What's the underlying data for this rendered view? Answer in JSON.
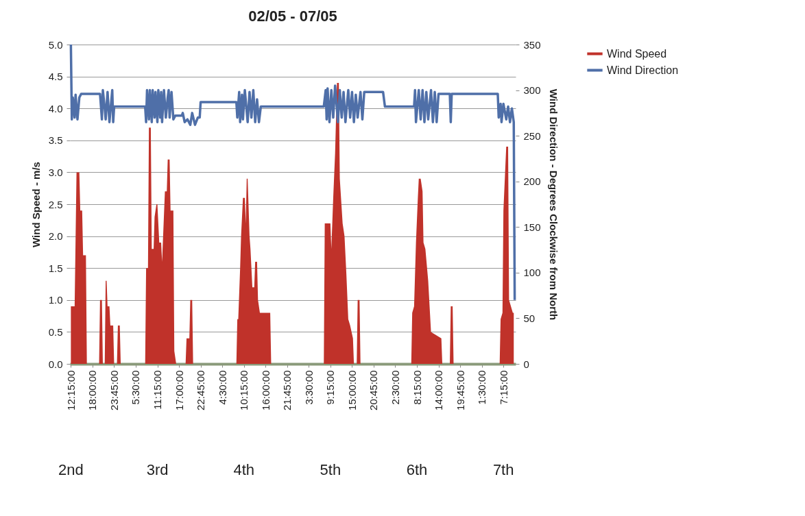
{
  "chart_data": {
    "type": "area",
    "title": "02/05 - 07/05",
    "ylabel": "Wind Speed - m/s",
    "y2label": "Wind Direction - Degrees  Clockwise from North",
    "xlim": [
      "--05-02T12:00",
      "--05-07T10:30"
    ],
    "xticks": [
      {
        "value": "--05-02T12:15",
        "label": "12:15:00"
      },
      {
        "value": "--05-02T18:00",
        "label": "18:00:00"
      },
      {
        "value": "--05-02T23:45",
        "label": "23:45:00"
      },
      {
        "value": "--05-03T05:30",
        "label": "5:30:00"
      },
      {
        "value": "--05-03T11:15",
        "label": "11:15:00"
      },
      {
        "value": "--05-03T17:00",
        "label": "17:00:00"
      },
      {
        "value": "--05-03T22:45",
        "label": "22:45:00"
      },
      {
        "value": "--05-04T04:30",
        "label": "4:30:00"
      },
      {
        "value": "--05-04T10:15",
        "label": "10:15:00"
      },
      {
        "value": "--05-04T16:00",
        "label": "16:00:00"
      },
      {
        "value": "--05-04T21:45",
        "label": "21:45:00"
      },
      {
        "value": "--05-05T03:30",
        "label": "3:30:00"
      },
      {
        "value": "--05-05T09:15",
        "label": "9:15:00"
      },
      {
        "value": "--05-05T15:00",
        "label": "15:00:00"
      },
      {
        "value": "--05-05T20:45",
        "label": "20:45:00"
      },
      {
        "value": "--05-06T02:30",
        "label": "2:30:00"
      },
      {
        "value": "--05-06T08:15",
        "label": "8:15:00"
      },
      {
        "value": "--05-06T14:00",
        "label": "14:00:00"
      },
      {
        "value": "--05-06T19:45",
        "label": "19:45:00"
      },
      {
        "value": "--05-07T01:30",
        "label": "1:30:00"
      },
      {
        "value": "--05-07T07:15",
        "label": "7:15:00"
      }
    ],
    "ylim": [
      0,
      5
    ],
    "yticks": [
      {
        "value": 0,
        "label": "0.0"
      },
      {
        "value": 0.5,
        "label": "0.5"
      },
      {
        "value": 1,
        "label": "1.0"
      },
      {
        "value": 1.5,
        "label": "1.5"
      },
      {
        "value": 2,
        "label": "2.0"
      },
      {
        "value": 2.5,
        "label": "2.5"
      },
      {
        "value": 3,
        "label": "3.0"
      },
      {
        "value": 3.5,
        "label": "3.5"
      },
      {
        "value": 4,
        "label": "4.0"
      },
      {
        "value": 4.5,
        "label": "4.5"
      },
      {
        "value": 5,
        "label": "5.0"
      }
    ],
    "y2lim": [
      0,
      350
    ],
    "y2ticks": [
      0,
      50,
      100,
      150,
      200,
      250,
      300,
      350
    ],
    "grid": "y",
    "legend": "right",
    "annotations": [
      "2nd",
      "3rd",
      "4th",
      "5th",
      "6th",
      "7th"
    ],
    "series": [
      {
        "name": "Wind Speed",
        "color": "#c0322a",
        "x": [
          "--05-02T12:15",
          "--05-02T13:15",
          "--05-02T13:45",
          "--05-02T14:30",
          "--05-02T14:45",
          "--05-02T15:15",
          "--05-02T15:30",
          "--05-02T16:15",
          "--05-02T16:30",
          "--05-02T19:45",
          "--05-02T20:00",
          "--05-02T20:30",
          "--05-02T20:45",
          "--05-02T21:15",
          "--05-02T21:30",
          "--05-02T21:45",
          "--05-02T22:00",
          "--05-02T22:30",
          "--05-02T22:45",
          "--05-02T23:30",
          "--05-02T23:45",
          "--05-03T00:30",
          "--05-03T00:45",
          "--05-03T01:15",
          "--05-03T01:30",
          "--05-03T08:00",
          "--05-03T08:15",
          "--05-03T08:45",
          "--05-03T09:00",
          "--05-03T09:30",
          "--05-03T09:45",
          "--05-03T10:15",
          "--05-03T10:30",
          "--05-03T11:00",
          "--05-03T11:15",
          "--05-03T11:45",
          "--05-03T12:15",
          "--05-03T12:30",
          "--05-03T13:15",
          "--05-03T13:45",
          "--05-03T14:00",
          "--05-03T14:30",
          "--05-03T14:45",
          "--05-03T15:30",
          "--05-03T15:45",
          "--05-03T16:15",
          "--05-03T18:45",
          "--05-03T19:00",
          "--05-03T19:45",
          "--05-03T20:00",
          "--05-03T20:30",
          "--05-03T20:45",
          "--05-04T08:15",
          "--05-04T08:30",
          "--05-04T08:45",
          "--05-04T09:15",
          "--05-04T09:30",
          "--05-04T10:00",
          "--05-04T10:30",
          "--05-04T10:45",
          "--05-04T11:00",
          "--05-04T11:15",
          "--05-04T11:45",
          "--05-04T12:00",
          "--05-04T12:30",
          "--05-04T13:00",
          "--05-04T13:15",
          "--05-04T13:45",
          "--05-04T14:00",
          "--05-04T14:30",
          "--05-04T17:15",
          "--05-04T17:30",
          "--05-05T07:30",
          "--05-05T07:45",
          "--05-05T09:15",
          "--05-05T09:30",
          "--05-05T10:00",
          "--05-05T10:30",
          "--05-05T11:00",
          "--05-05T11:30",
          "--05-05T11:45",
          "--05-05T12:30",
          "--05-05T13:00",
          "--05-05T13:30",
          "--05-05T14:00",
          "--05-05T14:30",
          "--05-05T15:15",
          "--05-05T15:30",
          "--05-05T16:15",
          "--05-05T16:30",
          "--05-05T17:00",
          "--05-05T17:15",
          "--05-06T06:45",
          "--05-06T07:00",
          "--05-06T07:30",
          "--05-06T08:00",
          "--05-06T08:30",
          "--05-06T08:45",
          "--05-06T09:15",
          "--05-06T09:45",
          "--05-06T10:00",
          "--05-06T10:30",
          "--05-06T11:15",
          "--05-06T12:00",
          "--05-06T14:45",
          "--05-06T15:00",
          "--05-06T17:00",
          "--05-06T17:15",
          "--05-06T17:45",
          "--05-06T18:00",
          "--05-07T06:15",
          "--05-07T06:30",
          "--05-07T07:00",
          "--05-07T07:15",
          "--05-07T08:00",
          "--05-07T08:30",
          "--05-07T08:45",
          "--05-07T09:45",
          "--05-07T10:00"
        ],
        "values": [
          0.9,
          0.9,
          3.0,
          3.0,
          2.4,
          2.4,
          1.7,
          1.7,
          0,
          0,
          1.0,
          1.0,
          0,
          0,
          1.3,
          1.3,
          0.9,
          0.9,
          0.6,
          0.6,
          0,
          0,
          0.6,
          0.6,
          0,
          0,
          1.5,
          1.5,
          3.7,
          3.7,
          1.8,
          1.8,
          2.3,
          2.5,
          2.5,
          1.9,
          1.9,
          1.6,
          2.7,
          2.7,
          3.2,
          3.2,
          2.4,
          2.4,
          0.2,
          0,
          0,
          0.4,
          0.4,
          1.0,
          1.0,
          0,
          0,
          0.7,
          0.7,
          1.5,
          2.0,
          2.6,
          2.6,
          2.2,
          2.9,
          2.9,
          2.0,
          1.8,
          1.2,
          1.2,
          1.6,
          1.6,
          1.0,
          0.8,
          0.8,
          0,
          0,
          2.2,
          2.2,
          1.8,
          2.6,
          3.3,
          4.4,
          4.4,
          2.9,
          2.2,
          2.0,
          1.4,
          0.7,
          0.6,
          0.4,
          0,
          0,
          1.0,
          1.0,
          0,
          0,
          0.8,
          0.9,
          1.9,
          2.6,
          2.9,
          2.9,
          2.7,
          1.9,
          1.8,
          1.3,
          0.5,
          0.4,
          0,
          0,
          0.9,
          0.9,
          0,
          0,
          0.7,
          0.8,
          2.4,
          3.4,
          3.4,
          1.0,
          0.8,
          0.8
        ]
      },
      {
        "name": "Wind Direction",
        "type": "line",
        "axis": "y2",
        "color": "#4f6fa8",
        "x": [
          "--05-02T12:15",
          "--05-02T12:30",
          "--05-02T12:45",
          "--05-02T13:15",
          "--05-02T13:30",
          "--05-02T14:00",
          "--05-02T14:30",
          "--05-02T15:00",
          "--05-02T20:00",
          "--05-02T20:30",
          "--05-02T20:45",
          "--05-02T21:15",
          "--05-02T21:30",
          "--05-02T22:00",
          "--05-02T22:30",
          "--05-02T23:15",
          "--05-02T23:30",
          "--05-02T23:45",
          "--05-03T08:00",
          "--05-03T08:15",
          "--05-03T08:30",
          "--05-03T09:00",
          "--05-03T09:15",
          "--05-03T09:45",
          "--05-03T10:00",
          "--05-03T10:30",
          "--05-03T10:45",
          "--05-03T11:15",
          "--05-03T11:30",
          "--05-03T12:00",
          "--05-03T12:15",
          "--05-03T12:30",
          "--05-03T13:00",
          "--05-03T13:30",
          "--05-03T14:00",
          "--05-03T14:15",
          "--05-03T14:30",
          "--05-03T15:00",
          "--05-03T15:30",
          "--05-03T16:00",
          "--05-03T17:45",
          "--05-03T18:00",
          "--05-03T18:30",
          "--05-03T19:15",
          "--05-03T20:00",
          "--05-03T20:30",
          "--05-03T21:15",
          "--05-03T22:00",
          "--05-03T22:30",
          "--05-03T22:45",
          "--05-04T08:15",
          "--05-04T08:30",
          "--05-04T09:00",
          "--05-04T09:15",
          "--05-04T09:45",
          "--05-04T10:00",
          "--05-04T10:30",
          "--05-04T11:15",
          "--05-04T11:45",
          "--05-04T12:15",
          "--05-04T12:45",
          "--05-04T13:15",
          "--05-04T13:45",
          "--05-04T14:15",
          "--05-04T14:45",
          "--05-05T07:30",
          "--05-05T08:00",
          "--05-05T08:15",
          "--05-05T08:30",
          "--05-05T09:00",
          "--05-05T09:30",
          "--05-05T10:00",
          "--05-05T10:30",
          "--05-05T11:15",
          "--05-05T11:45",
          "--05-05T12:15",
          "--05-05T12:45",
          "--05-05T13:15",
          "--05-05T14:00",
          "--05-05T14:30",
          "--05-05T15:00",
          "--05-05T15:30",
          "--05-05T16:00",
          "--05-05T16:30",
          "--05-05T17:15",
          "--05-05T17:45",
          "--05-05T18:15",
          "--05-05T23:15",
          "--05-05T23:45",
          "--05-06T07:30",
          "--05-06T07:45",
          "--05-06T08:00",
          "--05-06T08:45",
          "--05-06T09:15",
          "--05-06T09:45",
          "--05-06T10:15",
          "--05-06T10:45",
          "--05-06T11:15",
          "--05-06T12:00",
          "--05-06T12:30",
          "--05-06T13:00",
          "--05-06T13:30",
          "--05-06T14:00",
          "--05-06T17:00",
          "--05-06T17:15",
          "--05-06T17:30",
          "--05-07T05:45",
          "--05-07T06:00",
          "--05-07T06:30",
          "--05-07T06:45",
          "--05-07T07:15",
          "--05-07T08:00",
          "--05-07T08:30",
          "--05-07T09:00",
          "--05-07T09:30",
          "--05-07T10:00",
          "--05-07T10:15"
        ],
        "values": [
          350,
          268,
          292,
          270,
          295,
          268,
          292,
          296,
          296,
          268,
          300,
          280,
          268,
          298,
          265,
          300,
          265,
          282,
          282,
          265,
          300,
          268,
          300,
          265,
          300,
          270,
          298,
          265,
          300,
          270,
          298,
          265,
          300,
          270,
          292,
          300,
          270,
          298,
          268,
          272,
          272,
          275,
          265,
          268,
          262,
          275,
          262,
          270,
          270,
          287,
          287,
          270,
          298,
          265,
          295,
          268,
          300,
          265,
          298,
          270,
          300,
          265,
          290,
          265,
          282,
          282,
          300,
          268,
          302,
          265,
          300,
          270,
          305,
          265,
          300,
          270,
          298,
          265,
          300,
          270,
          298,
          265,
          295,
          270,
          298,
          268,
          298,
          298,
          282,
          282,
          300,
          265,
          300,
          268,
          300,
          265,
          298,
          268,
          300,
          265,
          298,
          265,
          296,
          296,
          265,
          296,
          296,
          270,
          285,
          265,
          285,
          268,
          282,
          265,
          280,
          265,
          70
        ]
      }
    ]
  }
}
